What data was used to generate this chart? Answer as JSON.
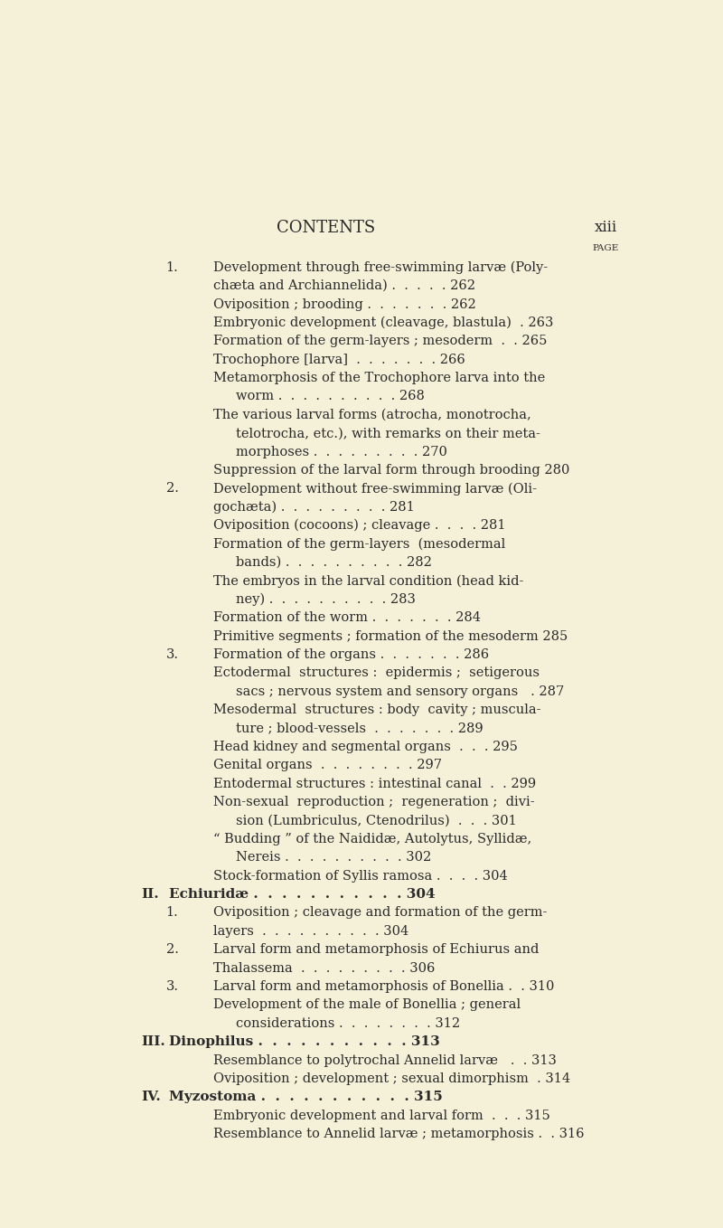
{
  "bg_color": "#f5f0d8",
  "header_title": "CONTENTS",
  "header_page_label": "xiii",
  "page_label": "PAGE",
  "font_color": "#2a2a2a",
  "entries": [
    {
      "indent": 0,
      "num": "1.",
      "text": "Development through free-swimming larvæ (Poly-",
      "continued": true
    },
    {
      "indent": 1,
      "num": "",
      "text": "chæta and Archiannelida) .  .  .  .  . 262",
      "continued": false
    },
    {
      "indent": 1,
      "num": "",
      "text": "Oviposition ; brooding .  .  .  .  .  .  . 262",
      "continued": false
    },
    {
      "indent": 1,
      "num": "",
      "text": "Embryonic development (cleavage, blastula)  . 263",
      "continued": false
    },
    {
      "indent": 1,
      "num": "",
      "text": "Formation of the germ-layers ; mesoderm  .  . 265",
      "continued": false
    },
    {
      "indent": 1,
      "num": "",
      "text": "Trochophore [larva]  .  .  .  .  .  .  . 266",
      "continued": false
    },
    {
      "indent": 1,
      "num": "",
      "text": "Metamorphosis of the Trochophore larva into the",
      "continued": true
    },
    {
      "indent": 2,
      "num": "",
      "text": "worm .  .  .  .  .  .  .  .  .  . 268",
      "continued": false
    },
    {
      "indent": 1,
      "num": "",
      "text": "The various larval forms (atrocha, monotrocha,",
      "continued": true
    },
    {
      "indent": 2,
      "num": "",
      "text": "telotrocha, etc.), with remarks on their meta-",
      "continued": true
    },
    {
      "indent": 2,
      "num": "",
      "text": "morphoses .  .  .  .  .  .  .  .  . 270",
      "continued": false
    },
    {
      "indent": 1,
      "num": "",
      "text": "Suppression of the larval form through brooding 280",
      "continued": false
    },
    {
      "indent": 0,
      "num": "2.",
      "text": "Development without free-swimming larvæ (Oli-",
      "continued": true
    },
    {
      "indent": 1,
      "num": "",
      "text": "gochæta) .  .  .  .  .  .  .  .  . 281",
      "continued": false
    },
    {
      "indent": 1,
      "num": "",
      "text": "Oviposition (cocoons) ; cleavage .  .  .  . 281",
      "continued": false
    },
    {
      "indent": 1,
      "num": "",
      "text": "Formation of the germ-layers  (mesodermal",
      "continued": true
    },
    {
      "indent": 2,
      "num": "",
      "text": "bands) .  .  .  .  .  .  .  .  .  . 282",
      "continued": false
    },
    {
      "indent": 1,
      "num": "",
      "text": "The embryos in the larval condition (head kid-",
      "continued": true
    },
    {
      "indent": 2,
      "num": "",
      "text": "ney) .  .  .  .  .  .  .  .  .  . 283",
      "continued": false
    },
    {
      "indent": 1,
      "num": "",
      "text": "Formation of the worm .  .  .  .  .  .  . 284",
      "continued": false
    },
    {
      "indent": 1,
      "num": "",
      "text": "Primitive segments ; formation of the mesoderm 285",
      "continued": false
    },
    {
      "indent": 0,
      "num": "3.",
      "text": "Formation of the organs .  .  .  .  .  .  . 286",
      "continued": false
    },
    {
      "indent": 1,
      "num": "",
      "text": "Ectodermal  structures :  epidermis ;  setigerous",
      "continued": true
    },
    {
      "indent": 2,
      "num": "",
      "text": "sacs ; nervous system and sensory organs   . 287",
      "continued": false
    },
    {
      "indent": 1,
      "num": "",
      "text": "Mesodermal  structures : body  cavity ; muscula-",
      "continued": true
    },
    {
      "indent": 2,
      "num": "",
      "text": "ture ; blood-vessels  .  .  .  .  .  .  . 289",
      "continued": false
    },
    {
      "indent": 1,
      "num": "",
      "text": "Head kidney and segmental organs  .  .  . 295",
      "continued": false
    },
    {
      "indent": 1,
      "num": "",
      "text": "Genital organs  .  .  .  .  .  .  .  . 297",
      "continued": false
    },
    {
      "indent": 1,
      "num": "",
      "text": "Entodermal structures : intestinal canal  .  . 299",
      "continued": false
    },
    {
      "indent": 1,
      "num": "",
      "text": "Non-sexual  reproduction ;  regeneration ;  divi-",
      "continued": true
    },
    {
      "indent": 2,
      "num": "",
      "text": "sion (Lumbriculus, Ctenodrilus)  .  .  . 301",
      "continued": false
    },
    {
      "indent": 1,
      "num": "",
      "text": "“ Budding ” of the Naididæ, Autolytus, Syllidæ,",
      "continued": true
    },
    {
      "indent": 2,
      "num": "",
      "text": "Nereis .  .  .  .  .  .  .  .  .  . 302",
      "continued": false
    },
    {
      "indent": 1,
      "num": "",
      "text": "Stock-formation of Syllis ramosa .  .  .  . 304",
      "continued": false
    },
    {
      "indent": -1,
      "num": "II.",
      "text": "Echiuridæ .  .  .  .  .  .  .  .  .  .  . 304",
      "continued": false
    },
    {
      "indent": 0,
      "num": "1.",
      "text": "Oviposition ; cleavage and formation of the germ-",
      "continued": true
    },
    {
      "indent": 1,
      "num": "",
      "text": "layers  .  .  .  .  .  .  .  .  .  . 304",
      "continued": false
    },
    {
      "indent": 0,
      "num": "2.",
      "text": "Larval form and metamorphosis of Echiurus and",
      "continued": true
    },
    {
      "indent": 1,
      "num": "",
      "text": "Thalassema  .  .  .  .  .  .  .  .  . 306",
      "continued": false
    },
    {
      "indent": 0,
      "num": "3.",
      "text": "Larval form and metamorphosis of Bonellia .  . 310",
      "continued": false
    },
    {
      "indent": 1,
      "num": "",
      "text": "Development of the male of Bonellia ; general",
      "continued": true
    },
    {
      "indent": 2,
      "num": "",
      "text": "considerations .  .  .  .  .  .  .  . 312",
      "continued": false
    },
    {
      "indent": -1,
      "num": "III.",
      "text": "Dinophilus .  .  .  .  .  .  .  .  .  .  . 313",
      "continued": false
    },
    {
      "indent": 1,
      "num": "",
      "text": "Resemblance to polytrochal Annelid larvæ   .  . 313",
      "continued": false
    },
    {
      "indent": 1,
      "num": "",
      "text": "Oviposition ; development ; sexual dimorphism  . 314",
      "continued": false
    },
    {
      "indent": -1,
      "num": "IV.",
      "text": "Myzostoma .  .  .  .  .  .  .  .  .  .  . 315",
      "continued": false
    },
    {
      "indent": 1,
      "num": "",
      "text": "Embryonic development and larval form  .  .  . 315",
      "continued": false
    },
    {
      "indent": 1,
      "num": "",
      "text": "Resemblance to Annelid larvæ ; metamorphosis .  . 316",
      "continued": false
    }
  ]
}
